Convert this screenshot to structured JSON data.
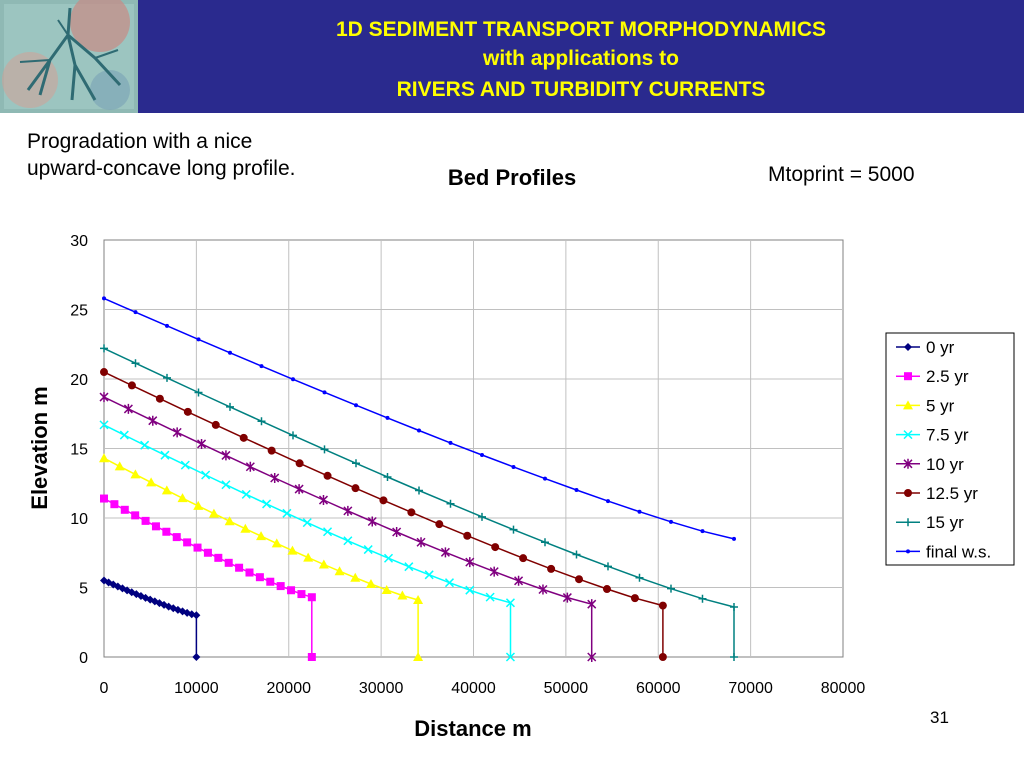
{
  "header": {
    "title_line1": "1D SEDIMENT TRANSPORT MORPHODYNAMICS",
    "title_line2": "with applications to",
    "title_line3": "RIVERS AND TURBIDITY CURRENTS",
    "band_color": "#2a2a8e",
    "text_color": "#ffff00",
    "logo_icon": "river-delta-image-icon"
  },
  "slide": {
    "note_line1": "Progradation with a nice",
    "note_line2": "upward-concave long profile.",
    "mtoprint": "Mtoprint = 5000",
    "page_number": "31"
  },
  "chart_data": {
    "type": "line",
    "title": "Bed Profiles",
    "xlabel": "Distance m",
    "ylabel": "Elevation m",
    "xlim": [
      0,
      80000
    ],
    "ylim": [
      0,
      30
    ],
    "xticks": [
      0,
      10000,
      20000,
      30000,
      40000,
      50000,
      60000,
      70000,
      80000
    ],
    "yticks": [
      0,
      5,
      10,
      15,
      20,
      25,
      30
    ],
    "grid": true,
    "legend_position": "right",
    "series": [
      {
        "name": "0 yr",
        "color": "#000080",
        "marker": "diamond",
        "x": [
          0,
          10000,
          10000
        ],
        "y": [
          5.5,
          3.0,
          0.0
        ],
        "markers_interior": 20
      },
      {
        "name": "2.5 yr",
        "color": "#ff00ff",
        "marker": "square",
        "x": [
          0,
          22500,
          22500
        ],
        "y": [
          11.4,
          4.3,
          0.0
        ],
        "markers_interior": 20
      },
      {
        "name": "5 yr",
        "color": "#ffff00",
        "marker": "triangle",
        "x": [
          0,
          34000,
          34000
        ],
        "y": [
          14.3,
          4.1,
          0.0
        ],
        "markers_interior": 20
      },
      {
        "name": "7.5 yr",
        "color": "#00ffff",
        "marker": "x",
        "x": [
          0,
          44000,
          44000
        ],
        "y": [
          16.7,
          3.9,
          0.0
        ],
        "markers_interior": 20
      },
      {
        "name": "10 yr",
        "color": "#800080",
        "marker": "star",
        "x": [
          0,
          52800,
          52800
        ],
        "y": [
          18.7,
          3.8,
          0.0
        ],
        "markers_interior": 20
      },
      {
        "name": "12.5 yr",
        "color": "#800000",
        "marker": "circle",
        "x": [
          0,
          60500,
          60500
        ],
        "y": [
          20.5,
          3.7,
          0.0
        ],
        "markers_interior": 20
      },
      {
        "name": "15 yr",
        "color": "#008080",
        "marker": "plus",
        "x": [
          0,
          68200,
          68200
        ],
        "y": [
          22.2,
          3.6,
          0.0
        ],
        "markers_interior": 20
      },
      {
        "name": "final w.s.",
        "color": "#0000ff",
        "marker": "dot",
        "x": [
          0,
          68200
        ],
        "y": [
          25.8,
          8.5
        ],
        "markers_interior": 20
      }
    ]
  }
}
